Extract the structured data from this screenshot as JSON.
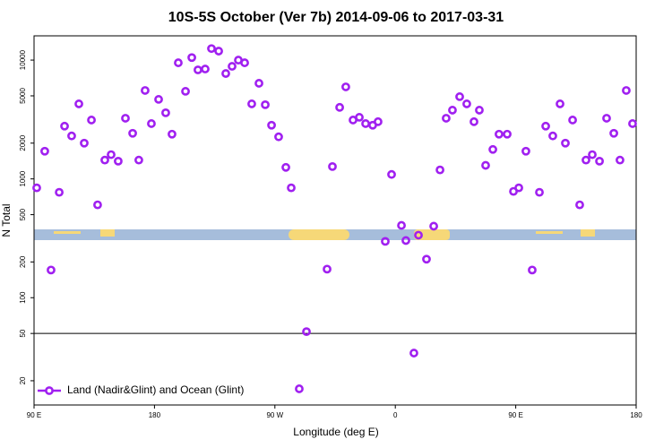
{
  "chart_data": {
    "type": "scatter",
    "title": "10S-5S October (Ver 7b)   2014-09-06 to 2017-03-31",
    "xlabel": "Longitude (deg E)",
    "ylabel": "N Total",
    "log_y": true,
    "color": "#a020f0",
    "legend_location": "lower left",
    "series": [
      {
        "name": "Land (Nadir&Glint) and Ocean (Glint)",
        "color": "#a020f0",
        "x": [
          92,
          98,
          102.7,
          108.8,
          112.8,
          118.1,
          123.5,
          127.5,
          132.9,
          137.5,
          142.9,
          147.6,
          152.9,
          158.3,
          163.7,
          168.3,
          173,
          177.7,
          183.1,
          188.4,
          193.1,
          197.8,
          203.2,
          207.9,
          212.5,
          217.9,
          222.6,
          228,
          233.3,
          238,
          242.7,
          247.4,
          252.7,
          258.1,
          262.8,
          267.5,
          272.8,
          278.2,
          282.2,
          288.2,
          293.6,
          309,
          313,
          318.4,
          323,
          328.4,
          333.1,
          337.8,
          343.1,
          347.1,
          352.5,
          357.2,
          364.6,
          367.9,
          373.9,
          377.3,
          383.3,
          388.7,
          393.4,
          398,
          402.7,
          408.1,
          413.4,
          418.8,
          422.8,
          427.5,
          432.9,
          437.5,
          443.6,
          448.3,
          452.3,
          457.6,
          462.3,
          467.7,
          472.4,
          477.7,
          483.1,
          487.1,
          492.5,
          497.8,
          502.5,
          507.2,
          512.6,
          517.9,
          523.3,
          527.9,
          532.6,
          537.3
        ],
        "values": [
          841,
          1710,
          171,
          771,
          2780,
          2300,
          4280,
          2000,
          3130,
          605,
          1440,
          1600,
          1410,
          3240,
          2420,
          1440,
          5550,
          2920,
          4670,
          3600,
          2380,
          9490,
          5460,
          10500,
          8270,
          8410,
          12500,
          11900,
          7710,
          8860,
          10000,
          9490,
          4280,
          6380,
          4210,
          2830,
          2260,
          1250,
          841,
          17.1,
          51.8,
          174,
          1270,
          4000,
          5950,
          3130,
          3300,
          2920,
          2830,
          3030,
          298,
          1090,
          406,
          303,
          34.2,
          336,
          211,
          400,
          1190,
          3240,
          3790,
          4920,
          4280,
          3030,
          3790,
          1300,
          1770,
          2380,
          2380,
          785,
          841,
          1710,
          171,
          771,
          2780,
          2300,
          4280,
          2000,
          3130,
          605,
          1440,
          1600,
          1410,
          3240,
          2420,
          1440,
          5550,
          2920
        ]
      }
    ],
    "reference_line": 50,
    "xlim": [
      90,
      540
    ],
    "xticks": [
      {
        "value": 90,
        "label": "90 E"
      },
      180,
      {
        "value": 270,
        "label": "90 W"
      },
      {
        "value": 360,
        "label": "0"
      },
      {
        "value": 450,
        "label": "90 E"
      },
      {
        "value": 540,
        "label": "180"
      }
    ],
    "ylim": [
      12.5,
      16000
    ],
    "yticks": [
      20,
      50,
      100,
      200,
      500,
      1000,
      2000,
      5000,
      10000
    ]
  }
}
